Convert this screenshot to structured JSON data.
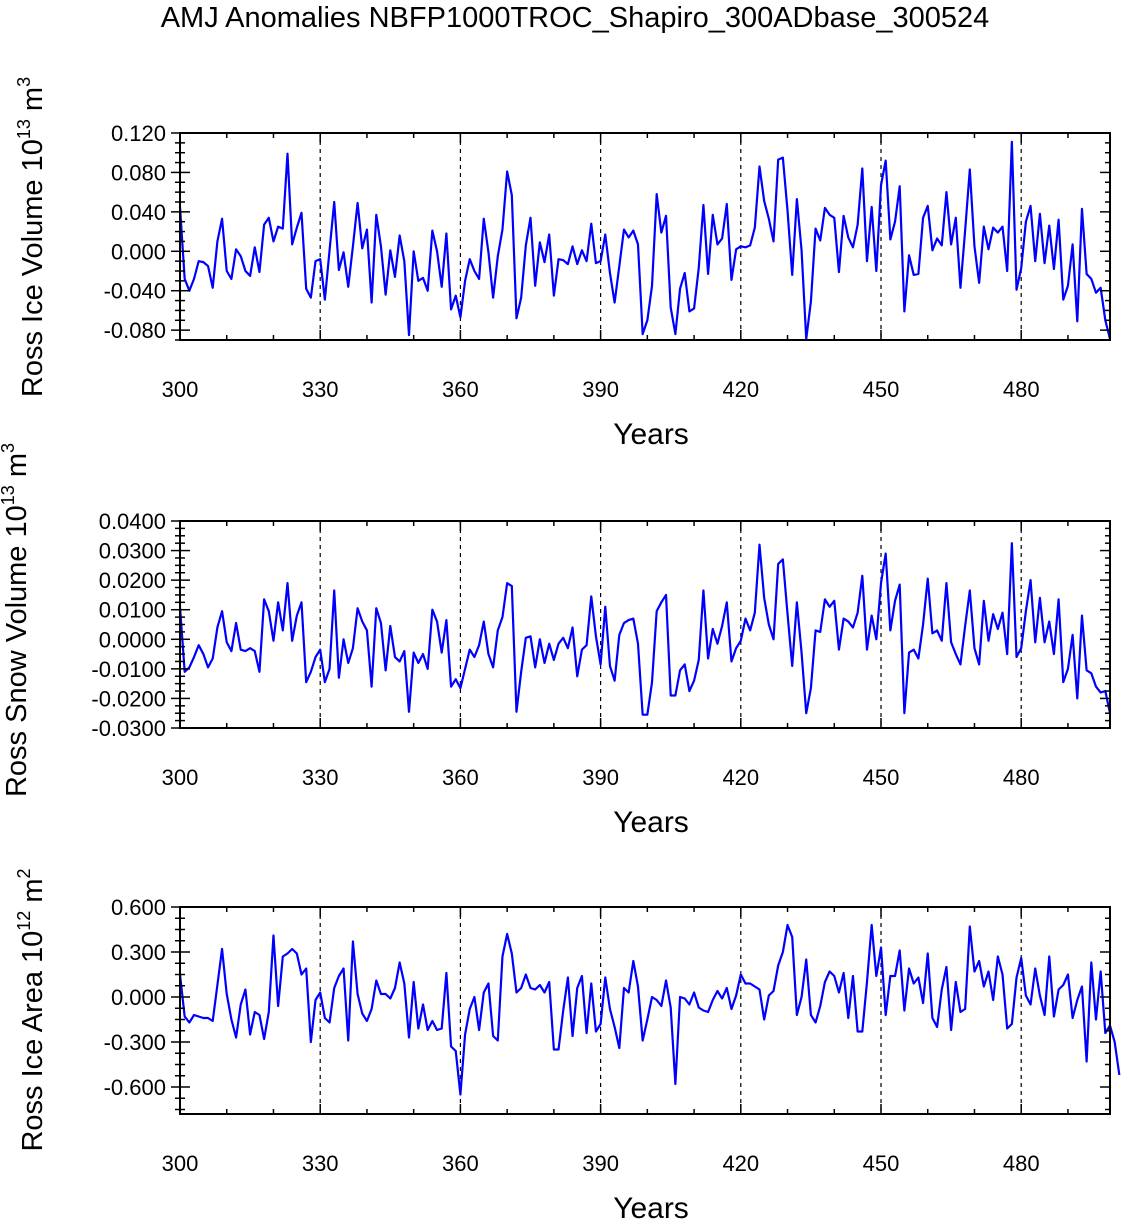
{
  "title": "AMJ Anomalies NBFP1000TROC_Shapiro_300ADbase_300524",
  "chart_data": [
    {
      "type": "line",
      "ylabel": "Ross Ice Volume 10",
      "ylabel_exp": "13",
      "ylabel_unit": " m",
      "ylabel_unit_exp": "3",
      "xlabel": "Years",
      "xlim": [
        300,
        499
      ],
      "ylim": [
        -0.09,
        0.12
      ],
      "yticks": [
        "0.120",
        "0.080",
        "0.040",
        "0.000",
        "-0.040",
        "-0.080"
      ],
      "ytick_values": [
        0.12,
        0.08,
        0.04,
        0.0,
        -0.04,
        -0.08
      ],
      "xticks": [
        "300",
        "330",
        "360",
        "390",
        "420",
        "450",
        "480"
      ],
      "xtick_values": [
        300,
        330,
        360,
        390,
        420,
        450,
        480
      ],
      "dashed_lines": [
        330,
        360,
        390,
        420,
        450,
        480
      ],
      "line_color": "#0000ff",
      "x_start": 300,
      "values": [
        0.045,
        -0.028,
        -0.04,
        -0.028,
        -0.01,
        -0.011,
        -0.015,
        -0.037,
        0.01,
        0.033,
        -0.02,
        -0.028,
        0.002,
        -0.005,
        -0.02,
        -0.025,
        0.004,
        -0.021,
        0.027,
        0.034,
        0.01,
        0.025,
        0.023,
        0.099,
        0.007,
        0.024,
        0.039,
        -0.038,
        -0.047,
        -0.01,
        -0.008,
        -0.049,
        0.001,
        0.05,
        -0.019,
        -0.001,
        -0.036,
        0.005,
        0.049,
        0.003,
        0.022,
        -0.052,
        0.037,
        0.005,
        -0.044,
        0.001,
        -0.026,
        0.016,
        -0.01,
        -0.085,
        0.0,
        -0.03,
        -0.027,
        -0.04,
        0.021,
        0.0,
        -0.036,
        0.018,
        -0.059,
        -0.045,
        -0.067,
        -0.03,
        -0.008,
        -0.02,
        -0.028,
        0.033,
        -0.001,
        -0.047,
        -0.005,
        0.022,
        0.081,
        0.057,
        -0.068,
        -0.047,
        0.006,
        0.034,
        -0.035,
        0.009,
        -0.011,
        0.017,
        -0.045,
        -0.008,
        -0.009,
        -0.013,
        0.005,
        -0.013,
        0.001,
        -0.01,
        0.028,
        -0.012,
        -0.01,
        0.017,
        -0.022,
        -0.052,
        -0.015,
        0.022,
        0.014,
        0.021,
        0.007,
        -0.084,
        -0.07,
        -0.035,
        0.058,
        0.019,
        0.036,
        -0.057,
        -0.084,
        -0.038,
        -0.022,
        -0.061,
        -0.058,
        -0.017,
        0.047,
        -0.023,
        0.037,
        0.007,
        0.013,
        0.048,
        -0.029,
        0.002,
        0.005,
        0.004,
        0.006,
        0.024,
        0.086,
        0.051,
        0.033,
        0.01,
        0.093,
        0.095,
        0.041,
        -0.024,
        0.053,
        0.001,
        -0.089,
        -0.051,
        0.023,
        0.011,
        0.044,
        0.037,
        0.034,
        -0.021,
        0.036,
        0.014,
        0.004,
        0.027,
        0.084,
        -0.01,
        0.045,
        -0.02,
        0.067,
        0.092,
        0.012,
        0.03,
        0.066,
        -0.061,
        -0.004,
        -0.024,
        -0.023,
        0.034,
        0.046,
        0.001,
        0.013,
        0.006,
        0.06,
        0.007,
        0.034,
        -0.037,
        0.021,
        0.083,
        0.005,
        -0.032,
        0.025,
        0.002,
        0.024,
        0.019,
        0.025,
        -0.02,
        0.111,
        -0.039,
        -0.017,
        0.03,
        0.046,
        -0.01,
        0.038,
        -0.012,
        0.026,
        -0.018,
        0.032,
        -0.049,
        -0.035,
        0.007,
        -0.071,
        0.043,
        -0.023,
        -0.028,
        -0.042,
        -0.037,
        -0.07,
        -0.089
      ]
    },
    {
      "type": "line",
      "ylabel": "Ross Snow Volume 10",
      "ylabel_exp": "13",
      "ylabel_unit": " m",
      "ylabel_unit_exp": "3",
      "xlabel": "Years",
      "xlim": [
        300,
        499
      ],
      "ylim": [
        -0.03,
        0.04
      ],
      "yticks": [
        "0.0400",
        "0.0300",
        "0.0200",
        "0.0100",
        "0.0000",
        "-0.0100",
        "-0.0200",
        "-0.0300"
      ],
      "ytick_values": [
        0.04,
        0.03,
        0.02,
        0.01,
        0.0,
        -0.01,
        -0.02,
        -0.03
      ],
      "xticks": [
        "300",
        "330",
        "360",
        "390",
        "420",
        "450",
        "480"
      ],
      "xtick_values": [
        300,
        330,
        360,
        390,
        420,
        450,
        480
      ],
      "dashed_lines": [
        330,
        360,
        390,
        420,
        450,
        480
      ],
      "line_color": "#0000ff",
      "x_start": 300,
      "values": [
        0.011,
        -0.011,
        -0.0095,
        -0.006,
        -0.002,
        -0.005,
        -0.0095,
        -0.0065,
        0.004,
        0.0095,
        -0.001,
        -0.004,
        0.0055,
        -0.0035,
        -0.004,
        -0.003,
        -0.004,
        -0.011,
        0.0135,
        0.0095,
        -0.0005,
        0.0125,
        0.003,
        0.019,
        -0.0005,
        0.008,
        0.0125,
        -0.0145,
        -0.011,
        -0.006,
        -0.0035,
        -0.0145,
        -0.01,
        0.0165,
        -0.013,
        0.0,
        -0.008,
        -0.003,
        0.0105,
        0.006,
        0.003,
        -0.016,
        0.0105,
        0.0055,
        -0.0105,
        0.0045,
        -0.006,
        -0.0075,
        -0.004,
        -0.0245,
        -0.0045,
        -0.008,
        -0.005,
        -0.01,
        0.01,
        0.006,
        -0.0045,
        0.0065,
        -0.016,
        -0.0135,
        -0.0165,
        -0.01,
        -0.0035,
        -0.006,
        -0.002,
        0.006,
        -0.005,
        -0.0095,
        0.003,
        0.0075,
        0.019,
        0.018,
        -0.0245,
        -0.011,
        0.0005,
        0.001,
        -0.0095,
        0.0,
        -0.008,
        -0.0015,
        -0.007,
        -0.0015,
        0.0005,
        -0.003,
        0.004,
        -0.0125,
        -0.0035,
        -0.002,
        0.0145,
        0.001,
        -0.0085,
        0.011,
        -0.009,
        -0.014,
        0.0015,
        0.0055,
        0.0065,
        0.007,
        -0.0015,
        -0.0255,
        -0.0255,
        -0.0145,
        0.0095,
        0.0125,
        0.015,
        -0.019,
        -0.019,
        -0.0105,
        -0.0085,
        -0.0175,
        -0.014,
        -0.007,
        0.0165,
        -0.0065,
        0.0035,
        -0.0015,
        0.0045,
        0.0125,
        -0.0075,
        -0.003,
        -0.0005,
        0.007,
        0.003,
        0.009,
        0.032,
        0.014,
        0.005,
        0.0,
        0.0255,
        0.027,
        0.0085,
        -0.009,
        0.0125,
        -0.0045,
        -0.025,
        -0.0165,
        0.003,
        0.0025,
        0.0135,
        0.011,
        0.013,
        -0.0035,
        0.007,
        0.006,
        0.004,
        0.009,
        0.0215,
        -0.0035,
        0.008,
        0.0,
        0.019,
        0.029,
        0.003,
        0.013,
        0.0185,
        -0.025,
        -0.0045,
        -0.0035,
        -0.0065,
        0.005,
        0.0205,
        0.002,
        0.003,
        -0.0005,
        0.019,
        -0.001,
        -0.005,
        -0.0085,
        0.0045,
        0.0165,
        -0.003,
        -0.0085,
        0.013,
        -0.0005,
        0.0085,
        0.0035,
        0.009,
        -0.005,
        0.0325,
        -0.006,
        -0.003,
        0.0095,
        0.02,
        -0.001,
        0.014,
        -0.001,
        0.006,
        -0.005,
        0.0135,
        -0.0145,
        -0.01,
        0.0015,
        -0.02,
        0.008,
        -0.0105,
        -0.0115,
        -0.016,
        -0.018,
        -0.0175,
        -0.025
      ]
    },
    {
      "type": "line",
      "ylabel": "Ross Ice Area 10",
      "ylabel_exp": "12",
      "ylabel_unit": " m",
      "ylabel_unit_exp": "2",
      "xlabel": "Years",
      "xlim": [
        300,
        499
      ],
      "ylim": [
        -0.78,
        0.6
      ],
      "yticks": [
        "0.600",
        "0.300",
        "0.000",
        "-0.300",
        "-0.600"
      ],
      "ytick_values": [
        0.6,
        0.3,
        0.0,
        -0.3,
        -0.6
      ],
      "xticks": [
        "300",
        "330",
        "360",
        "390",
        "420",
        "450",
        "480"
      ],
      "xtick_values": [
        300,
        330,
        360,
        390,
        420,
        450,
        480
      ],
      "dashed_lines": [
        330,
        360,
        390,
        420,
        450,
        480
      ],
      "line_color": "#0000ff",
      "x_start": 300,
      "values": [
        0.15,
        -0.13,
        -0.17,
        -0.12,
        -0.13,
        -0.14,
        -0.14,
        -0.16,
        0.08,
        0.32,
        0.02,
        -0.15,
        -0.27,
        -0.05,
        0.05,
        -0.25,
        -0.1,
        -0.12,
        -0.28,
        -0.1,
        0.41,
        -0.06,
        0.27,
        0.29,
        0.32,
        0.29,
        0.15,
        0.19,
        -0.3,
        -0.02,
        0.03,
        -0.14,
        -0.17,
        0.06,
        0.14,
        0.19,
        -0.29,
        0.37,
        0.02,
        -0.11,
        -0.16,
        -0.08,
        0.11,
        0.02,
        0.02,
        -0.01,
        0.06,
        0.23,
        0.09,
        -0.27,
        0.1,
        -0.21,
        -0.05,
        -0.22,
        -0.16,
        -0.22,
        -0.21,
        0.16,
        -0.33,
        -0.36,
        -0.65,
        -0.25,
        -0.08,
        0.0,
        -0.22,
        0.03,
        0.09,
        -0.26,
        -0.29,
        0.27,
        0.42,
        0.29,
        0.03,
        0.06,
        0.15,
        0.06,
        0.05,
        0.08,
        0.03,
        0.1,
        -0.35,
        -0.35,
        -0.09,
        0.13,
        -0.26,
        0.06,
        0.14,
        -0.24,
        0.09,
        -0.23,
        -0.18,
        0.13,
        -0.08,
        -0.2,
        -0.34,
        0.06,
        0.03,
        0.24,
        0.07,
        -0.29,
        -0.15,
        0.0,
        -0.02,
        -0.06,
        0.11,
        -0.07,
        -0.58,
        0.0,
        -0.01,
        -0.05,
        0.03,
        -0.07,
        -0.09,
        -0.1,
        -0.02,
        0.04,
        -0.01,
        0.06,
        -0.08,
        0.01,
        0.15,
        0.09,
        0.09,
        0.07,
        0.05,
        -0.15,
        0.01,
        0.04,
        0.21,
        0.3,
        0.48,
        0.4,
        -0.12,
        0.0,
        0.25,
        -0.12,
        -0.17,
        -0.06,
        0.1,
        0.17,
        0.14,
        0.03,
        0.16,
        -0.14,
        0.14,
        -0.23,
        -0.23,
        0.1,
        0.48,
        0.14,
        0.33,
        -0.12,
        0.14,
        0.14,
        0.31,
        -0.09,
        0.19,
        0.09,
        0.13,
        -0.04,
        0.29,
        -0.14,
        -0.2,
        0.05,
        0.2,
        -0.22,
        0.1,
        -0.1,
        -0.08,
        0.47,
        0.17,
        0.24,
        0.07,
        0.17,
        -0.02,
        0.27,
        0.15,
        -0.21,
        -0.18,
        0.13,
        0.26,
        0.01,
        -0.05,
        0.19,
        0.01,
        -0.12,
        0.27,
        -0.13,
        0.05,
        0.08,
        0.15,
        -0.14,
        -0.02,
        0.07,
        -0.43,
        0.23,
        -0.15,
        0.17,
        -0.24,
        -0.19,
        -0.3,
        -0.52
      ]
    }
  ]
}
